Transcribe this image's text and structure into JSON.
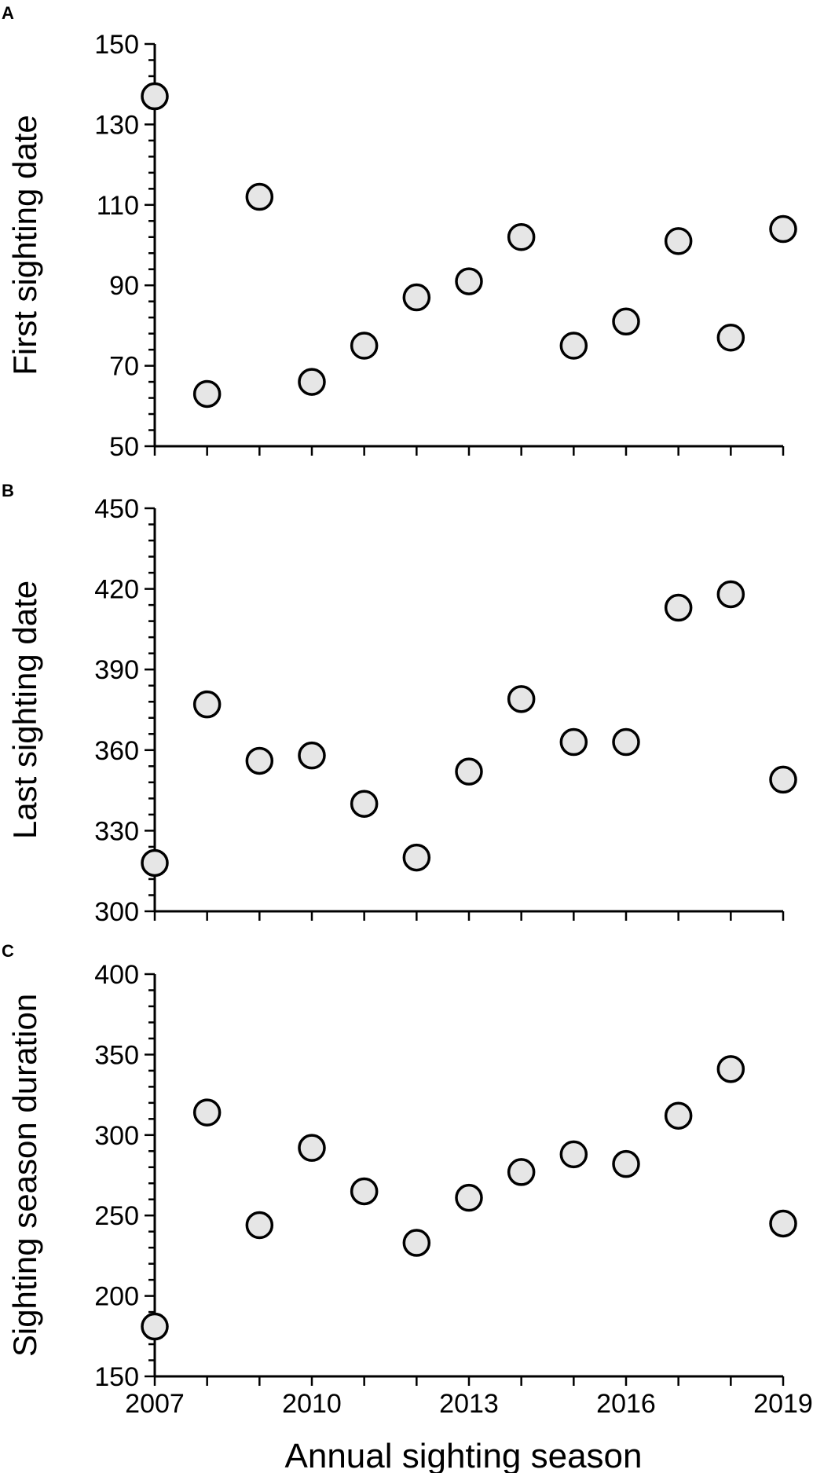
{
  "chart_data": [
    {
      "panel": "A",
      "type": "scatter",
      "ylabel": "First sighting date",
      "ylim": [
        50,
        150
      ],
      "yticks": [
        50,
        70,
        90,
        110,
        130,
        150
      ],
      "x": [
        2007,
        2008,
        2009,
        2010,
        2011,
        2012,
        2013,
        2014,
        2015,
        2016,
        2017,
        2018,
        2019
      ],
      "y": [
        137,
        63,
        112,
        66,
        75,
        87,
        91,
        102,
        75,
        81,
        101,
        77,
        104
      ]
    },
    {
      "panel": "B",
      "type": "scatter",
      "ylabel": "Last sighting date",
      "ylim": [
        300,
        450
      ],
      "yticks": [
        300,
        330,
        360,
        390,
        420,
        450
      ],
      "x": [
        2007,
        2008,
        2009,
        2010,
        2011,
        2012,
        2013,
        2014,
        2015,
        2016,
        2017,
        2018,
        2019
      ],
      "y": [
        318,
        377,
        356,
        358,
        340,
        320,
        352,
        379,
        363,
        363,
        413,
        418,
        349
      ]
    },
    {
      "panel": "C",
      "type": "scatter",
      "ylabel": "Sighting season duration",
      "ylim": [
        150,
        400
      ],
      "yticks": [
        150,
        200,
        250,
        300,
        350,
        400
      ],
      "x": [
        2007,
        2008,
        2009,
        2010,
        2011,
        2012,
        2013,
        2014,
        2015,
        2016,
        2017,
        2018,
        2019
      ],
      "y": [
        181,
        314,
        244,
        292,
        265,
        233,
        261,
        277,
        288,
        282,
        312,
        341,
        245
      ]
    }
  ],
  "x_axis": {
    "label": "Annual sighting season",
    "xlim": [
      2007,
      2019
    ],
    "tick_labels": [
      "2007",
      "2010",
      "2013",
      "2016",
      "2019"
    ]
  },
  "style": {
    "marker_fill": "#e6e6e6",
    "marker_stroke": "#000000"
  }
}
